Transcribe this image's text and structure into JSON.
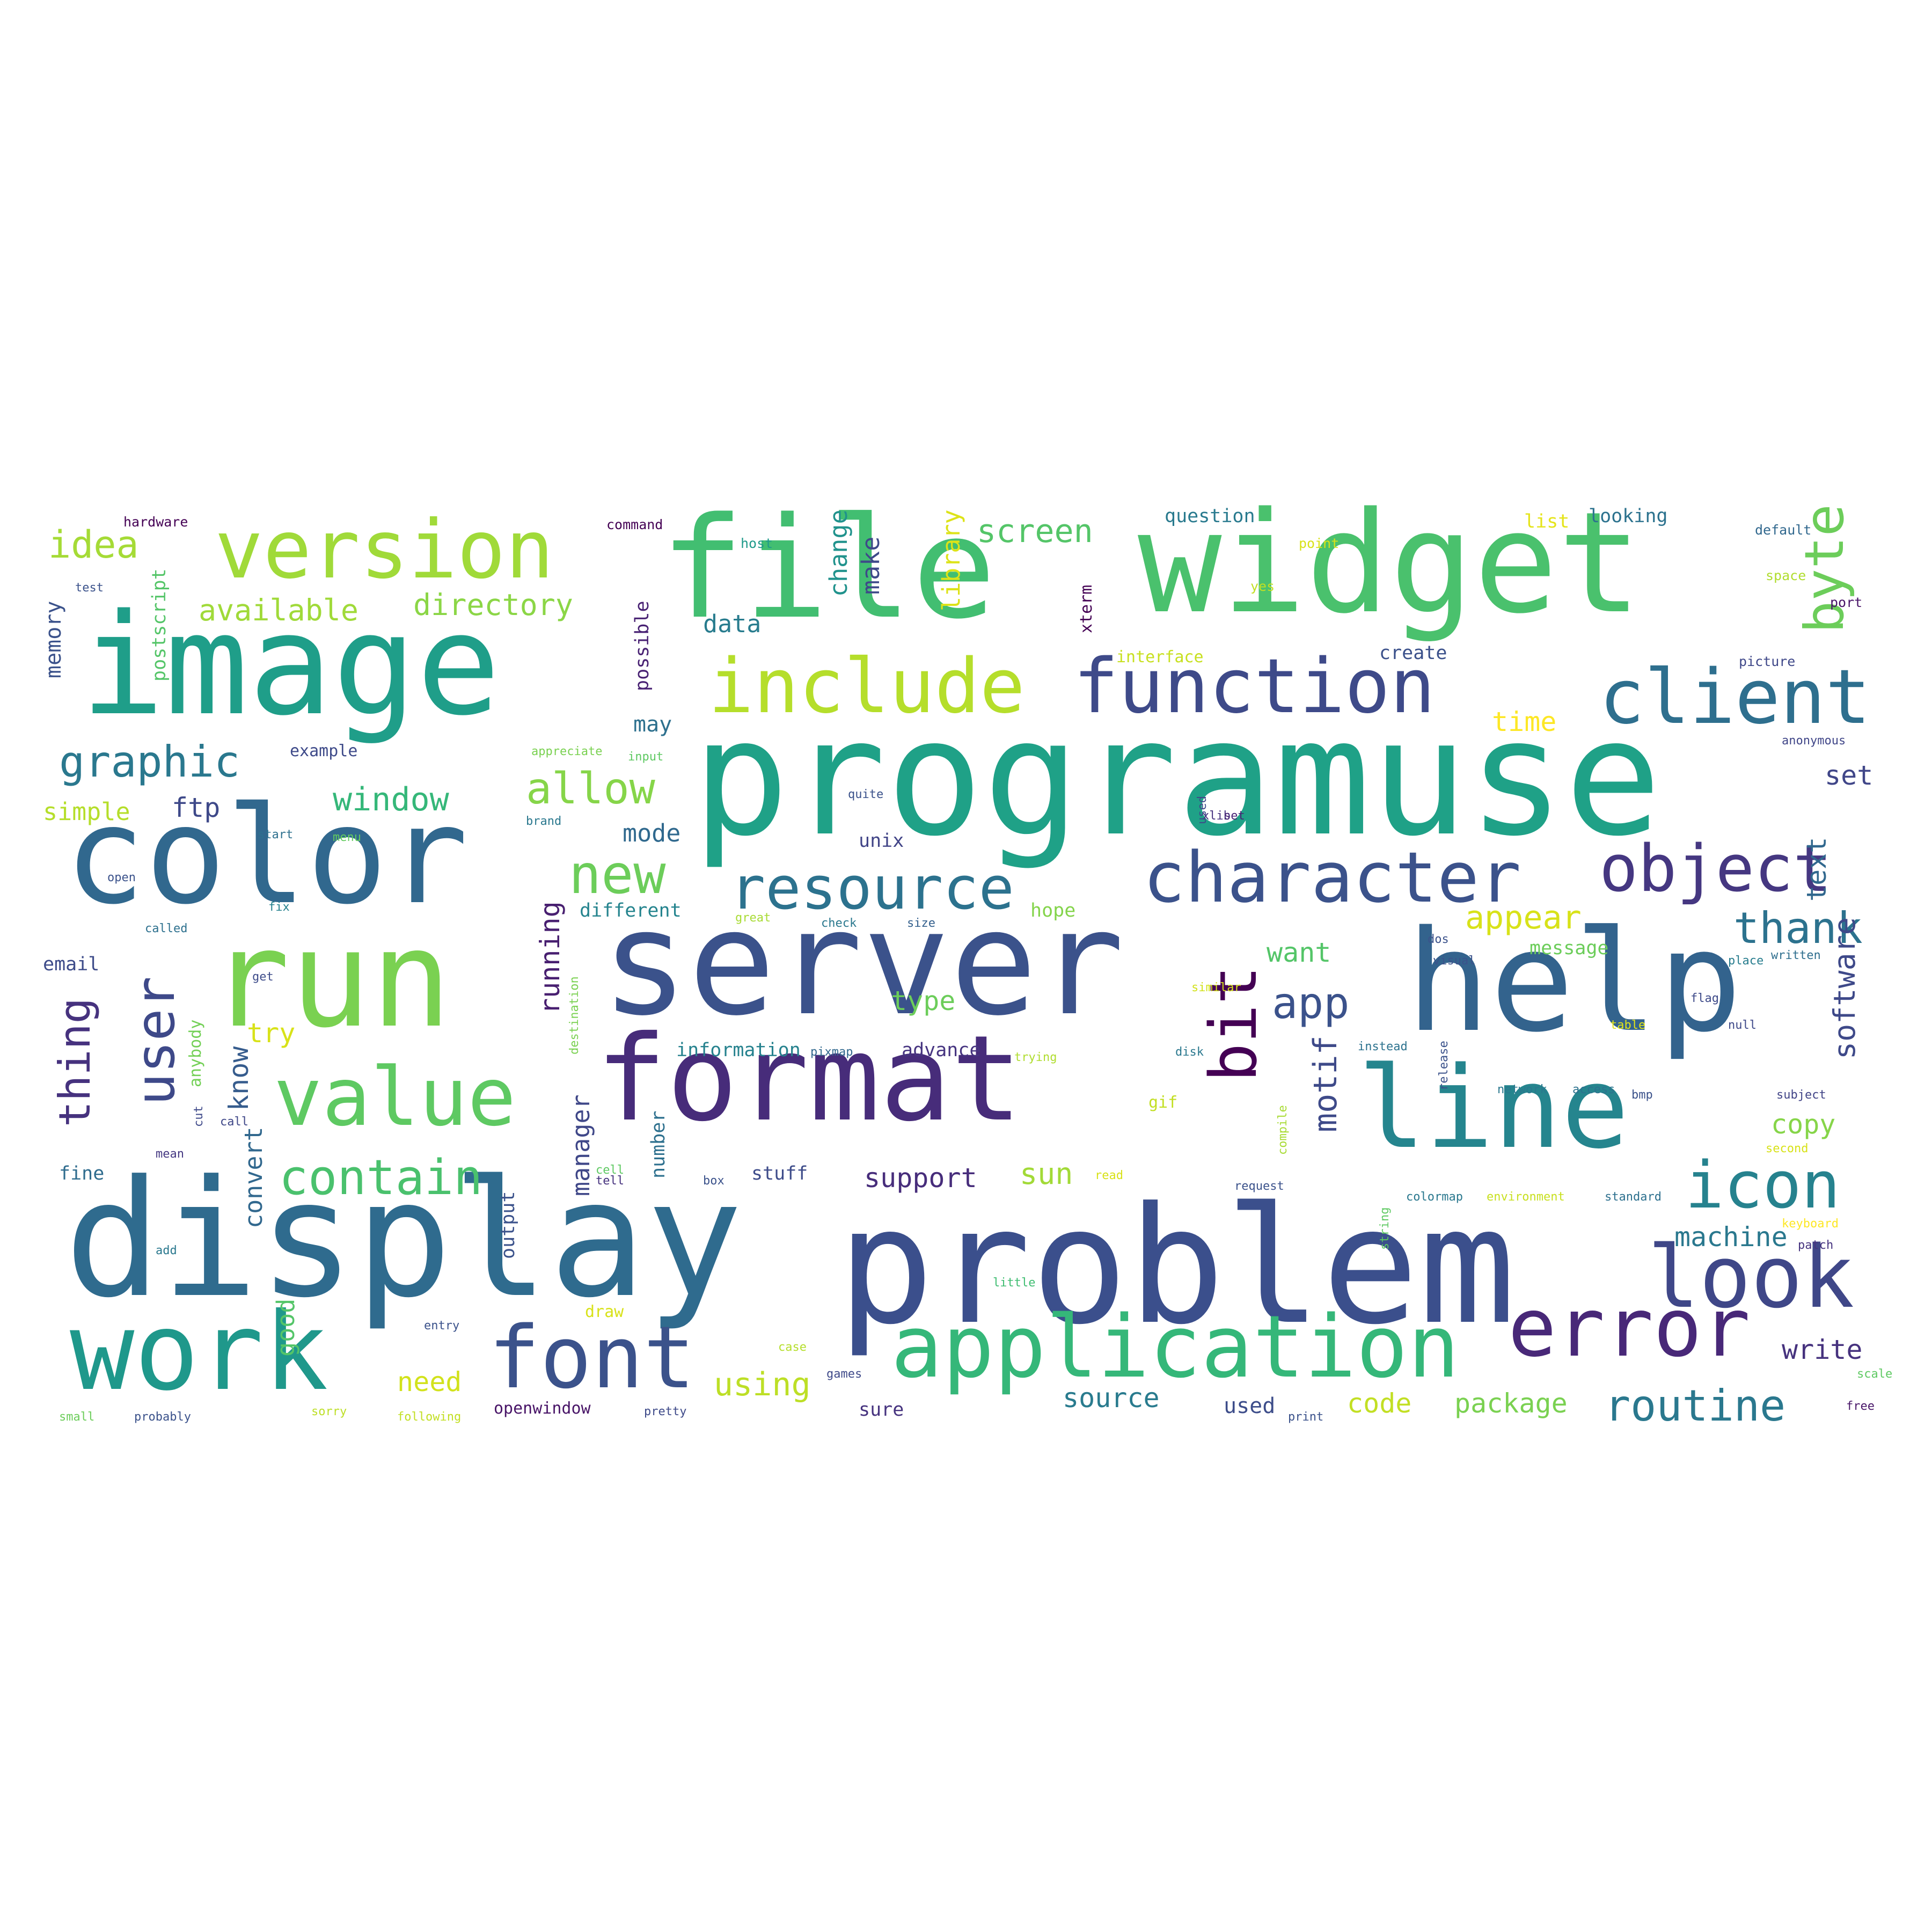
{
  "words": [
    {
      "text": "display",
      "color": "#2f6b8e"
    },
    {
      "text": "problem",
      "color": "#3b4f8c"
    },
    {
      "text": "programuse",
      "color": "#1fa187"
    },
    {
      "text": "file",
      "color": "#42be71"
    },
    {
      "text": "widget",
      "color": "#4ac16d"
    },
    {
      "text": "image",
      "color": "#1f9e89"
    },
    {
      "text": "color",
      "color": "#31688e"
    },
    {
      "text": "server",
      "color": "#3b528b"
    },
    {
      "text": "run",
      "color": "#7ad151"
    },
    {
      "text": "help",
      "color": "#33638d"
    },
    {
      "text": "format",
      "color": "#472c7a"
    },
    {
      "text": "line",
      "color": "#25858e"
    },
    {
      "text": "work",
      "color": "#1f988b"
    },
    {
      "text": "version",
      "color": "#a0da39"
    },
    {
      "text": "function",
      "color": "#3e4a89"
    },
    {
      "text": "include",
      "color": "#b5de2b"
    },
    {
      "text": "client",
      "color": "#2e6f8e"
    },
    {
      "text": "character",
      "color": "#3b528b"
    },
    {
      "text": "object",
      "color": "#453781"
    },
    {
      "text": "resource",
      "color": "#2c728e"
    },
    {
      "text": "application",
      "color": "#35b779"
    },
    {
      "text": "font",
      "color": "#3b528b"
    },
    {
      "text": "error",
      "color": "#482878"
    },
    {
      "text": "look",
      "color": "#3f4788"
    },
    {
      "text": "value",
      "color": "#5ec962"
    },
    {
      "text": "bit",
      "color": "#440154"
    },
    {
      "text": "user",
      "color": "#3e4989"
    },
    {
      "text": "icon",
      "color": "#26828e"
    },
    {
      "text": "new",
      "color": "#6ccd5a"
    },
    {
      "text": "contain",
      "color": "#4ac16d"
    },
    {
      "text": "graphic",
      "color": "#2a788e"
    },
    {
      "text": "allow",
      "color": "#86d549"
    },
    {
      "text": "routine",
      "color": "#2a788e"
    },
    {
      "text": "idea",
      "color": "#a5db36"
    },
    {
      "text": "byte",
      "color": "#6ccd5a"
    },
    {
      "text": "thank",
      "color": "#2c728e"
    },
    {
      "text": "available",
      "color": "#a0da39"
    },
    {
      "text": "directory",
      "color": "#8bd646"
    },
    {
      "text": "screen",
      "color": "#54c568"
    },
    {
      "text": "app",
      "color": "#3b528b"
    },
    {
      "text": "window",
      "color": "#35b779"
    },
    {
      "text": "appear",
      "color": "#d8e219"
    },
    {
      "text": "thing",
      "color": "#46327e"
    },
    {
      "text": "motif",
      "color": "#3e4a89"
    },
    {
      "text": "running",
      "color": "#481f70"
    },
    {
      "text": "software",
      "color": "#3e4989"
    },
    {
      "text": "machine",
      "color": "#2a788e"
    },
    {
      "text": "package",
      "color": "#7ad151"
    },
    {
      "text": "code",
      "color": "#c2df23"
    },
    {
      "text": "source",
      "color": "#297b8e"
    },
    {
      "text": "using",
      "color": "#bddf26"
    },
    {
      "text": "need",
      "color": "#d2e21b"
    },
    {
      "text": "write",
      "color": "#46327e"
    },
    {
      "text": "set",
      "color": "#404688"
    },
    {
      "text": "text",
      "color": "#31688e"
    },
    {
      "text": "copy",
      "color": "#86d549"
    },
    {
      "text": "sun",
      "color": "#a2da37"
    },
    {
      "text": "support",
      "color": "#472d7b"
    },
    {
      "text": "want",
      "color": "#54c568"
    },
    {
      "text": "type",
      "color": "#6ccd5a"
    },
    {
      "text": "try",
      "color": "#d8e219"
    },
    {
      "text": "know",
      "color": "#365c8d"
    },
    {
      "text": "convert",
      "color": "#31688e"
    },
    {
      "text": "manager",
      "color": "#3f4788"
    },
    {
      "text": "good",
      "color": "#54c568"
    },
    {
      "text": "ftp",
      "color": "#3e4989"
    },
    {
      "text": "simple",
      "color": "#b5de2b"
    },
    {
      "text": "change",
      "color": "#20928c"
    },
    {
      "text": "make",
      "color": "#3e4a89"
    },
    {
      "text": "library",
      "color": "#dde318"
    },
    {
      "text": "data",
      "color": "#287c8e"
    },
    {
      "text": "may",
      "color": "#2d708e"
    },
    {
      "text": "mode",
      "color": "#30698e"
    },
    {
      "text": "time",
      "color": "#fde725"
    },
    {
      "text": "memory",
      "color": "#3b528b"
    },
    {
      "text": "postscript",
      "color": "#54c568"
    },
    {
      "text": "question",
      "color": "#297a8e"
    },
    {
      "text": "looking",
      "color": "#2c728e"
    },
    {
      "text": "list",
      "color": "#e5e419"
    },
    {
      "text": "email",
      "color": "#3e4c8a"
    },
    {
      "text": "information",
      "color": "#26828e"
    },
    {
      "text": "advance",
      "color": "#463480"
    },
    {
      "text": "stuff",
      "color": "#3e4c8a"
    },
    {
      "text": "number",
      "color": "#2d708e"
    },
    {
      "text": "output",
      "color": "#3b528b"
    },
    {
      "text": "example",
      "color": "#3e4a89"
    },
    {
      "text": "possible",
      "color": "#482173"
    },
    {
      "text": "different",
      "color": "#25848e"
    },
    {
      "text": "hope",
      "color": "#84d44b"
    },
    {
      "text": "fine",
      "color": "#2f6c8e"
    },
    {
      "text": "openwindow",
      "color": "#481467"
    },
    {
      "text": "sure",
      "color": "#46337f"
    },
    {
      "text": "used",
      "color": "#3d4d8a"
    },
    {
      "text": "xterm",
      "color": "#440154"
    },
    {
      "text": "create",
      "color": "#3b518b"
    },
    {
      "text": "interface",
      "color": "#c8e020"
    },
    {
      "text": "unix",
      "color": "#414487"
    },
    {
      "text": "anybody",
      "color": "#73d056"
    },
    {
      "text": "hardware",
      "color": "#440154"
    },
    {
      "text": "command",
      "color": "#440154"
    },
    {
      "text": "host",
      "color": "#1f9a8a"
    },
    {
      "text": "default",
      "color": "#31688e"
    },
    {
      "text": "point",
      "color": "#d8e219"
    },
    {
      "text": "yes",
      "color": "#c2df23"
    },
    {
      "text": "space",
      "color": "#b0dd2f"
    },
    {
      "text": "port",
      "color": "#481467"
    },
    {
      "text": "picture",
      "color": "#3f4889"
    },
    {
      "text": "anonymous",
      "color": "#404688"
    },
    {
      "text": "appreciate",
      "color": "#7ad151"
    },
    {
      "text": "input",
      "color": "#5ec962"
    },
    {
      "text": "quite",
      "color": "#3b528b"
    },
    {
      "text": "start",
      "color": "#2d708e"
    },
    {
      "text": "menu",
      "color": "#63cb5f"
    },
    {
      "text": "open",
      "color": "#3b528b"
    },
    {
      "text": "fix",
      "color": "#26828e"
    },
    {
      "text": "great",
      "color": "#a8db34"
    },
    {
      "text": "check",
      "color": "#2a788e"
    },
    {
      "text": "size",
      "color": "#34608d"
    },
    {
      "text": "visual",
      "color": "#3b528b"
    },
    {
      "text": "message",
      "color": "#6ccd5a"
    },
    {
      "text": "written",
      "color": "#2e6e8e"
    },
    {
      "text": "place",
      "color": "#287d8e"
    },
    {
      "text": "flag",
      "color": "#3e4a89"
    },
    {
      "text": "null",
      "color": "#3e4989"
    },
    {
      "text": "table",
      "color": "#e2e418"
    },
    {
      "text": "release",
      "color": "#3b528b"
    },
    {
      "text": "network",
      "color": "#2a788e"
    },
    {
      "text": "access",
      "color": "#2c728e"
    },
    {
      "text": "bmp",
      "color": "#3b528b"
    },
    {
      "text": "subject",
      "color": "#414487"
    },
    {
      "text": "second",
      "color": "#d8e219"
    },
    {
      "text": "colormap",
      "color": "#2a788e"
    },
    {
      "text": "environment",
      "color": "#c8e020"
    },
    {
      "text": "standard",
      "color": "#2d708e"
    },
    {
      "text": "request",
      "color": "#3b528b"
    },
    {
      "text": "keyboard",
      "color": "#fde725"
    },
    {
      "text": "patch",
      "color": "#46337f"
    },
    {
      "text": "little",
      "color": "#40bd72"
    },
    {
      "text": "draw",
      "color": "#d8e219"
    },
    {
      "text": "case",
      "color": "#b5de2b"
    },
    {
      "text": "games",
      "color": "#3e4989"
    },
    {
      "text": "scale",
      "color": "#5ec962"
    },
    {
      "text": "free",
      "color": "#481668"
    },
    {
      "text": "print",
      "color": "#3b528b"
    },
    {
      "text": "pretty",
      "color": "#3e4a89"
    },
    {
      "text": "following",
      "color": "#c2df23"
    },
    {
      "text": "sorry",
      "color": "#bddf26"
    },
    {
      "text": "probably",
      "color": "#3b528b"
    },
    {
      "text": "small",
      "color": "#6ccd5a"
    },
    {
      "text": "add",
      "color": "#2a788e"
    },
    {
      "text": "entry",
      "color": "#3b528b"
    },
    {
      "text": "tell",
      "color": "#46327e"
    },
    {
      "text": "box",
      "color": "#3b528b"
    },
    {
      "text": "mean",
      "color": "#453882"
    },
    {
      "text": "call",
      "color": "#3f4788"
    },
    {
      "text": "gif",
      "color": "#c2df23"
    },
    {
      "text": "disk",
      "color": "#2a788e"
    },
    {
      "text": "trying",
      "color": "#b0dd2f"
    },
    {
      "text": "pixmap",
      "color": "#31688e"
    },
    {
      "text": "similar",
      "color": "#d2e21b"
    },
    {
      "text": "instead",
      "color": "#2c728e"
    },
    {
      "text": "string",
      "color": "#5ec962"
    },
    {
      "text": "compile",
      "color": "#a8db34"
    },
    {
      "text": "read",
      "color": "#d8e219"
    },
    {
      "text": "dos",
      "color": "#3b528b"
    },
    {
      "text": "xlib",
      "color": "#46327e"
    },
    {
      "text": "set2",
      "color": "#482475"
    },
    {
      "text": "used2",
      "color": "#3e4a89"
    },
    {
      "text": "called",
      "color": "#2d708e"
    },
    {
      "text": "get",
      "color": "#3e4c8a"
    },
    {
      "text": "test",
      "color": "#3b528b"
    },
    {
      "text": "brand",
      "color": "#2a788e"
    },
    {
      "text": "destination",
      "color": "#7ad151"
    },
    {
      "text": "cut",
      "color": "#3e4989"
    },
    {
      "text": "cell",
      "color": "#5ec962"
    }
  ]
}
